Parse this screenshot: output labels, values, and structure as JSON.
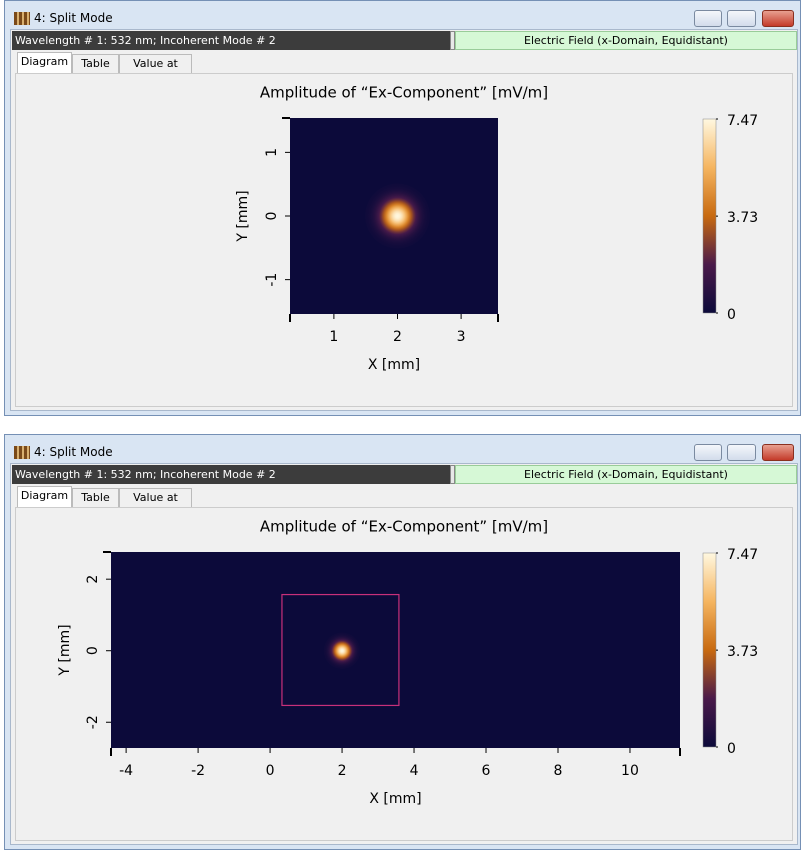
{
  "windows": [
    {
      "title": "4: Split Mode",
      "info": "Wavelength # 1: 532 nm; Incoherent Mode # 2",
      "field": "Electric Field (x-Domain, Equidistant)",
      "tabs": [
        "Diagram",
        "Table",
        "Value at (x,y)"
      ],
      "chart_data": {
        "type": "heatmap",
        "title": "Amplitude of “Ex-Component”  [mV/m]",
        "xlabel": "X [mm]",
        "ylabel": "Y [mm]",
        "xlim": [
          0.31,
          3.58
        ],
        "ylim": [
          -1.54,
          1.54
        ],
        "xticks": [
          1,
          2,
          3
        ],
        "yticks": [
          -1,
          0,
          1
        ],
        "clim": [
          0,
          7.47
        ],
        "cticks": [
          0,
          3.73,
          7.47
        ],
        "colormap": [
          "#0c0a3a",
          "#4a1a4a",
          "#c86a10",
          "#f5b560",
          "#fff8e0"
        ],
        "spot": {
          "x": 2,
          "y": 0,
          "sigma": 0.17
        }
      }
    },
    {
      "title": "4: Split Mode",
      "info": "Wavelength # 1: 532 nm; Incoherent Mode # 2",
      "field": "Electric Field (x-Domain, Equidistant)",
      "tabs": [
        "Diagram",
        "Table",
        "Value at (x,y)"
      ],
      "chart_data": {
        "type": "heatmap",
        "title": "Amplitude of “Ex-Component”  [mV/m]",
        "xlabel": "X [mm]",
        "ylabel": "Y [mm]",
        "xlim": [
          -4.42,
          11.39
        ],
        "ylim": [
          -2.72,
          2.76
        ],
        "xticks": [
          -4,
          -2,
          0,
          2,
          4,
          6,
          8,
          10
        ],
        "yticks": [
          -2,
          0,
          2
        ],
        "clim": [
          0,
          7.47
        ],
        "cticks": [
          0,
          3.73,
          7.47
        ],
        "colormap": [
          "#0c0a3a",
          "#4a1a4a",
          "#c86a10",
          "#f5b560",
          "#fff8e0"
        ],
        "spot": {
          "x": 2,
          "y": 0,
          "sigma": 0.17
        },
        "region": {
          "x": [
            0.33,
            3.58
          ],
          "y": [
            -1.53,
            1.57
          ],
          "color": "#c8307a"
        }
      }
    }
  ]
}
